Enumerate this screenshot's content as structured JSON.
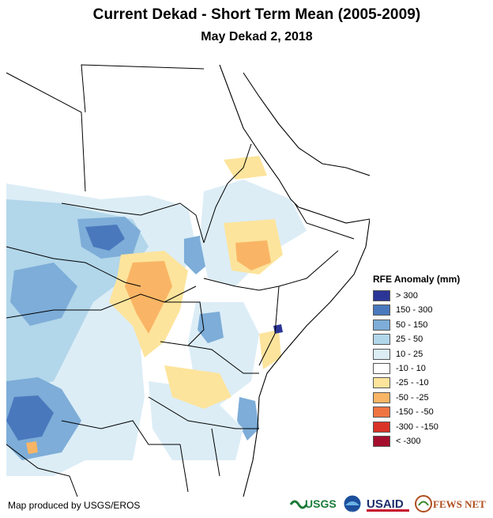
{
  "title": "Current Dekad - Short Term Mean (2005-2009)",
  "subtitle": "May Dekad 2, 2018",
  "legend": {
    "title": "RFE Anomaly (mm)",
    "items": [
      {
        "label": "> 300",
        "color": "#2b3596"
      },
      {
        "label": "150 - 300",
        "color": "#4a78bd"
      },
      {
        "label": "50 - 150",
        "color": "#7dadd8"
      },
      {
        "label": "25 - 50",
        "color": "#b2d6ea"
      },
      {
        "label": "10 - 25",
        "color": "#dcedf6"
      },
      {
        "label": "-10 - 10",
        "color": "#ffffff"
      },
      {
        "label": "-25 - -10",
        "color": "#fde49c"
      },
      {
        "label": "-50 - -25",
        "color": "#f9b565"
      },
      {
        "label": "-150 - -50",
        "color": "#f07442"
      },
      {
        "label": "-300 - -150",
        "color": "#d93227"
      },
      {
        "label": "< -300",
        "color": "#a50f2e"
      }
    ]
  },
  "credit": "Map produced by USGS/EROS",
  "logos": {
    "usgs": "USGS",
    "noaa": "NOAA",
    "usaid": "USAID",
    "fewsnet": "FEWS NET"
  }
}
